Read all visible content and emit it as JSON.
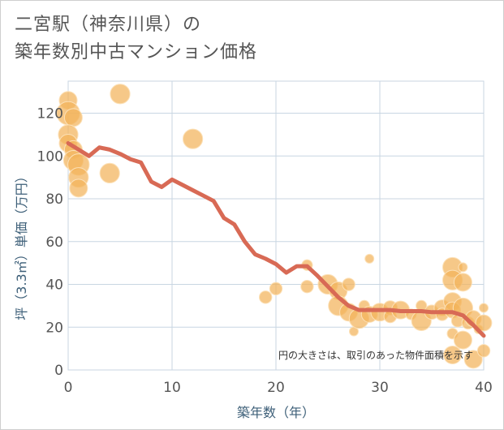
{
  "title_line1": "二宮駅（神奈川県）の",
  "title_line2": "築年数別中古マンション価格",
  "colors": {
    "bubble_fill": "#f2b35a",
    "bubble_stroke": "#fce1b8",
    "line": "#d86a55",
    "grid": "#c8d6e2",
    "axis_title": "#3d5f78"
  },
  "chart_data": {
    "type": "scatter",
    "title": "築年数別中古マンション価格",
    "xlabel": "築年数（年）",
    "ylabel": "坪（3.3㎡）単価（万円）",
    "xlim": [
      0,
      40
    ],
    "ylim": [
      0,
      135
    ],
    "x_ticks": [
      0,
      10,
      20,
      30,
      40
    ],
    "y_ticks": [
      0,
      20,
      40,
      60,
      80,
      100,
      120
    ],
    "grid": true,
    "note": "円の大きさは、取引のあった物件面積を示す",
    "bubbles": [
      {
        "x": 0,
        "y": 126,
        "r": 1.0
      },
      {
        "x": 0,
        "y": 120,
        "r": 1.3
      },
      {
        "x": 0.5,
        "y": 118,
        "r": 1.0
      },
      {
        "x": 0,
        "y": 110,
        "r": 1.1
      },
      {
        "x": 0,
        "y": 106,
        "r": 1.0
      },
      {
        "x": 0.5,
        "y": 103,
        "r": 1.0
      },
      {
        "x": 0.5,
        "y": 98,
        "r": 1.1
      },
      {
        "x": 1,
        "y": 96,
        "r": 1.2
      },
      {
        "x": 1,
        "y": 90,
        "r": 1.1
      },
      {
        "x": 1,
        "y": 85,
        "r": 1.0
      },
      {
        "x": 5,
        "y": 129,
        "r": 1.1
      },
      {
        "x": 4,
        "y": 92,
        "r": 1.1
      },
      {
        "x": 12,
        "y": 108,
        "r": 1.1
      },
      {
        "x": 19,
        "y": 34,
        "r": 0.7
      },
      {
        "x": 20,
        "y": 38,
        "r": 0.7
      },
      {
        "x": 23,
        "y": 49,
        "r": 0.6
      },
      {
        "x": 23,
        "y": 39,
        "r": 0.7
      },
      {
        "x": 25,
        "y": 40,
        "r": 1.1
      },
      {
        "x": 26,
        "y": 37,
        "r": 1.0
      },
      {
        "x": 26,
        "y": 30,
        "r": 1.1
      },
      {
        "x": 27,
        "y": 40,
        "r": 0.7
      },
      {
        "x": 27,
        "y": 27,
        "r": 1.0
      },
      {
        "x": 27.5,
        "y": 18,
        "r": 0.5
      },
      {
        "x": 28,
        "y": 24,
        "r": 1.1
      },
      {
        "x": 28.5,
        "y": 30,
        "r": 0.6
      },
      {
        "x": 29,
        "y": 26,
        "r": 0.9
      },
      {
        "x": 29,
        "y": 52,
        "r": 0.5
      },
      {
        "x": 30,
        "y": 27,
        "r": 1.0
      },
      {
        "x": 31,
        "y": 29,
        "r": 0.8
      },
      {
        "x": 31,
        "y": 25,
        "r": 0.7
      },
      {
        "x": 32,
        "y": 28,
        "r": 1.0
      },
      {
        "x": 33,
        "y": 26,
        "r": 0.6
      },
      {
        "x": 34,
        "y": 23,
        "r": 1.1
      },
      {
        "x": 34,
        "y": 30,
        "r": 0.6
      },
      {
        "x": 35,
        "y": 27,
        "r": 0.8
      },
      {
        "x": 36,
        "y": 29,
        "r": 0.9
      },
      {
        "x": 36,
        "y": 26,
        "r": 0.7
      },
      {
        "x": 37,
        "y": 48,
        "r": 1.1
      },
      {
        "x": 37,
        "y": 42,
        "r": 1.1
      },
      {
        "x": 37,
        "y": 32,
        "r": 1.0
      },
      {
        "x": 37,
        "y": 28,
        "r": 0.9
      },
      {
        "x": 37,
        "y": 17,
        "r": 0.6
      },
      {
        "x": 37,
        "y": 7,
        "r": 1.0
      },
      {
        "x": 37.5,
        "y": 23,
        "r": 0.7
      },
      {
        "x": 38,
        "y": 48,
        "r": 0.5
      },
      {
        "x": 38,
        "y": 41,
        "r": 1.0
      },
      {
        "x": 38,
        "y": 29,
        "r": 1.1
      },
      {
        "x": 38,
        "y": 14,
        "r": 1.0
      },
      {
        "x": 38.5,
        "y": 22,
        "r": 0.7
      },
      {
        "x": 39,
        "y": 24,
        "r": 0.9
      },
      {
        "x": 39,
        "y": 5,
        "r": 1.0
      },
      {
        "x": 39.5,
        "y": 19,
        "r": 0.5
      },
      {
        "x": 40,
        "y": 29,
        "r": 0.5
      },
      {
        "x": 40,
        "y": 22,
        "r": 0.9
      },
      {
        "x": 40,
        "y": 9,
        "r": 0.7
      }
    ],
    "trend": {
      "x": [
        0,
        1,
        2,
        3,
        4,
        5,
        6,
        7,
        8,
        9,
        10,
        11,
        12,
        13,
        14,
        15,
        16,
        17,
        18,
        19,
        20,
        21,
        22,
        23,
        24,
        25,
        26,
        27,
        28,
        29,
        30,
        31,
        32,
        33,
        34,
        35,
        36,
        37,
        38,
        39,
        40
      ],
      "y": [
        106,
        103,
        100,
        104,
        103,
        101,
        98.5,
        97,
        88,
        85.5,
        89,
        86.5,
        84,
        81.5,
        79,
        71,
        68,
        60,
        54,
        52,
        49.5,
        45.5,
        48.5,
        48.5,
        44,
        39,
        34,
        30,
        28,
        28,
        28,
        28,
        27.5,
        27.5,
        27.5,
        27,
        27,
        27,
        25.5,
        21,
        16
      ]
    }
  }
}
